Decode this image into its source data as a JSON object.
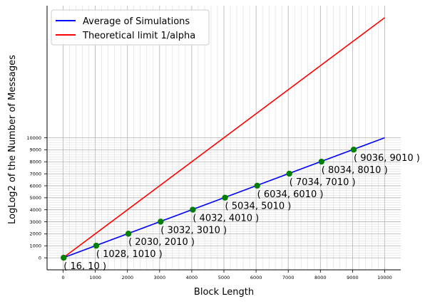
{
  "chart_data": {
    "type": "line",
    "xlabel": "Block Length",
    "ylabel": "LogLog2 of the Number of Messages",
    "xlim": [
      -500,
      10500
    ],
    "ylim": [
      -1000,
      21000
    ],
    "x_ticks": [
      0,
      1000,
      2000,
      3000,
      4000,
      5000,
      6000,
      7000,
      8000,
      9000,
      10000
    ],
    "y_ticks": [
      0,
      1000,
      2000,
      3000,
      4000,
      5000,
      6000,
      7000,
      8000,
      9000,
      10000
    ],
    "grid": true,
    "legend_position": "top-left",
    "series": [
      {
        "name": "Average of Simulations",
        "color": "#0000ff",
        "x": [
          0,
          10000
        ],
        "y": [
          0,
          10000
        ]
      },
      {
        "name": "Theoretical limit 1/alpha",
        "color": "#ff0000",
        "x": [
          0,
          10000
        ],
        "y": [
          0,
          20000
        ]
      }
    ],
    "points": {
      "color": "#008000",
      "x": [
        16,
        1028,
        2030,
        3032,
        4032,
        5034,
        6034,
        7034,
        8034,
        9036
      ],
      "y": [
        10,
        1010,
        2010,
        3010,
        4010,
        5010,
        6010,
        7010,
        8010,
        9010
      ],
      "labels": [
        "( 16, 10 )",
        "( 1028, 1010 )",
        "( 2030, 2010 )",
        "( 3032, 3010 )",
        "( 4032, 4010 )",
        "( 5034, 5010 )",
        "( 6034, 6010 )",
        "( 7034, 7010 )",
        "( 8034, 8010 )",
        "( 9036, 9010 )"
      ]
    }
  }
}
